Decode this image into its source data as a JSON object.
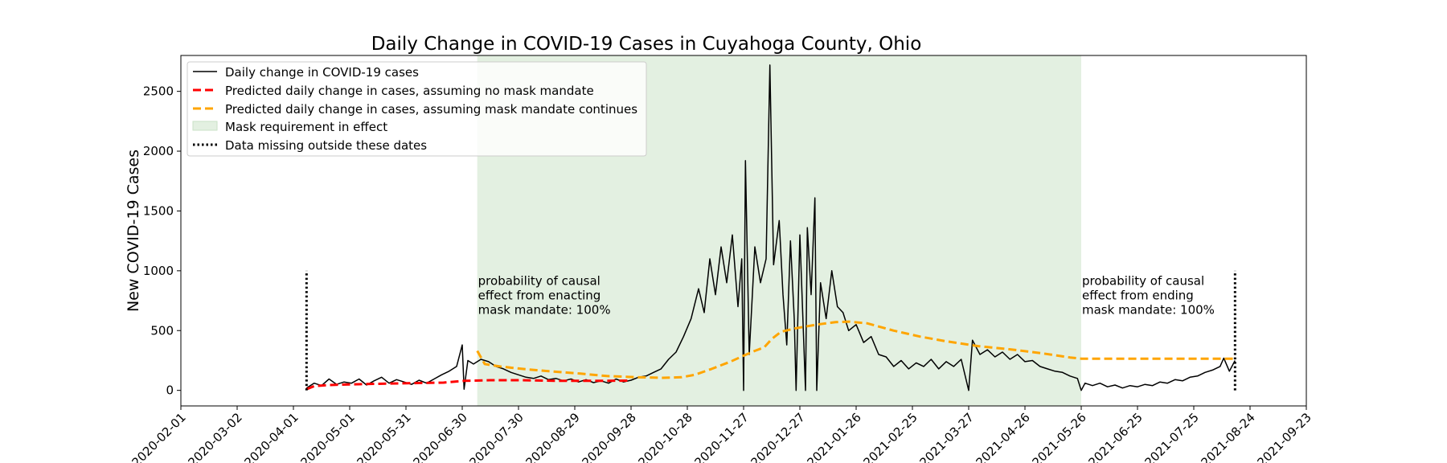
{
  "chart_data": {
    "type": "line",
    "title": "Daily Change in COVID-19 Cases in Cuyahoga County, Ohio",
    "ylabel": "New COVID-19 Cases",
    "xlabel": "",
    "x_range": [
      "2020-02-01",
      "2021-09-23"
    ],
    "ylim": [
      -130,
      2800
    ],
    "y_ticks": [
      0,
      500,
      1000,
      1500,
      2000,
      2500
    ],
    "x_ticks": [
      "2020-02-01",
      "2020-03-02",
      "2020-04-01",
      "2020-05-01",
      "2020-05-31",
      "2020-06-30",
      "2020-07-30",
      "2020-08-29",
      "2020-09-28",
      "2020-10-28",
      "2020-11-27",
      "2020-12-27",
      "2021-01-26",
      "2021-02-25",
      "2021-03-27",
      "2021-04-26",
      "2021-05-26",
      "2021-06-25",
      "2021-07-25",
      "2021-08-24",
      "2021-09-23"
    ],
    "grid": false,
    "legend_position": "top-left",
    "legend": [
      {
        "label": "Daily change in COVID-19 cases",
        "style": "solid",
        "color": "#000000"
      },
      {
        "label": "Predicted daily change in cases, assuming no mask mandate",
        "style": "dashed",
        "color": "#ff0000"
      },
      {
        "label": "Predicted daily change in cases, assuming mask mandate continues",
        "style": "dashed",
        "color": "#ffa500"
      },
      {
        "label": "Mask requirement in effect",
        "style": "patch",
        "color": "#e3f0e1"
      },
      {
        "label": "Data missing outside these dates",
        "style": "dotted",
        "color": "#000000"
      }
    ],
    "mask_period": [
      "2020-07-08",
      "2021-05-26"
    ],
    "data_bounds": {
      "start": "2020-04-08",
      "end": "2021-08-16",
      "height": 1000
    },
    "annotations": [
      {
        "date": "2020-07-08",
        "y": 880,
        "lines": [
          "probability of causal",
          "effect from enacting",
          "mask mandate: 100%"
        ]
      },
      {
        "date": "2021-05-26",
        "y": 880,
        "lines": [
          "probability of causal",
          "effect from ending",
          "mask mandate: 100%"
        ]
      }
    ],
    "series": [
      {
        "name": "Daily change in COVID-19 cases",
        "color": "#000000",
        "points": [
          [
            "2020-04-08",
            20
          ],
          [
            "2020-04-12",
            60
          ],
          [
            "2020-04-16",
            40
          ],
          [
            "2020-04-20",
            95
          ],
          [
            "2020-04-24",
            50
          ],
          [
            "2020-04-28",
            70
          ],
          [
            "2020-05-02",
            60
          ],
          [
            "2020-05-06",
            95
          ],
          [
            "2020-05-10",
            45
          ],
          [
            "2020-05-14",
            80
          ],
          [
            "2020-05-18",
            110
          ],
          [
            "2020-05-22",
            60
          ],
          [
            "2020-05-26",
            90
          ],
          [
            "2020-05-30",
            70
          ],
          [
            "2020-06-03",
            50
          ],
          [
            "2020-06-07",
            85
          ],
          [
            "2020-06-11",
            60
          ],
          [
            "2020-06-15",
            95
          ],
          [
            "2020-06-19",
            130
          ],
          [
            "2020-06-23",
            160
          ],
          [
            "2020-06-27",
            200
          ],
          [
            "2020-06-30",
            380
          ],
          [
            "2020-07-01",
            10
          ],
          [
            "2020-07-03",
            250
          ],
          [
            "2020-07-06",
            220
          ],
          [
            "2020-07-10",
            260
          ],
          [
            "2020-07-14",
            240
          ],
          [
            "2020-07-18",
            200
          ],
          [
            "2020-07-22",
            180
          ],
          [
            "2020-07-26",
            150
          ],
          [
            "2020-07-30",
            130
          ],
          [
            "2020-08-03",
            110
          ],
          [
            "2020-08-07",
            100
          ],
          [
            "2020-08-11",
            120
          ],
          [
            "2020-08-15",
            90
          ],
          [
            "2020-08-19",
            100
          ],
          [
            "2020-08-23",
            80
          ],
          [
            "2020-08-27",
            95
          ],
          [
            "2020-08-31",
            70
          ],
          [
            "2020-09-04",
            90
          ],
          [
            "2020-09-08",
            65
          ],
          [
            "2020-09-12",
            80
          ],
          [
            "2020-09-16",
            60
          ],
          [
            "2020-09-20",
            95
          ],
          [
            "2020-09-24",
            70
          ],
          [
            "2020-09-28",
            85
          ],
          [
            "2020-10-02",
            110
          ],
          [
            "2020-10-06",
            120
          ],
          [
            "2020-10-10",
            150
          ],
          [
            "2020-10-14",
            180
          ],
          [
            "2020-10-18",
            260
          ],
          [
            "2020-10-22",
            320
          ],
          [
            "2020-10-26",
            450
          ],
          [
            "2020-10-30",
            600
          ],
          [
            "2020-11-03",
            850
          ],
          [
            "2020-11-06",
            650
          ],
          [
            "2020-11-09",
            1100
          ],
          [
            "2020-11-12",
            800
          ],
          [
            "2020-11-15",
            1200
          ],
          [
            "2020-11-18",
            900
          ],
          [
            "2020-11-21",
            1300
          ],
          [
            "2020-11-24",
            700
          ],
          [
            "2020-11-26",
            1100
          ],
          [
            "2020-11-27",
            0
          ],
          [
            "2020-11-28",
            1920
          ],
          [
            "2020-11-30",
            300
          ],
          [
            "2020-12-03",
            1200
          ],
          [
            "2020-12-06",
            900
          ],
          [
            "2020-12-09",
            1100
          ],
          [
            "2020-12-11",
            2720
          ],
          [
            "2020-12-13",
            1050
          ],
          [
            "2020-12-16",
            1420
          ],
          [
            "2020-12-18",
            800
          ],
          [
            "2020-12-20",
            380
          ],
          [
            "2020-12-22",
            1250
          ],
          [
            "2020-12-24",
            600
          ],
          [
            "2020-12-25",
            0
          ],
          [
            "2020-12-27",
            1300
          ],
          [
            "2020-12-30",
            0
          ],
          [
            "2020-12-31",
            1360
          ],
          [
            "2021-01-02",
            800
          ],
          [
            "2021-01-04",
            1610
          ],
          [
            "2021-01-05",
            0
          ],
          [
            "2021-01-07",
            900
          ],
          [
            "2021-01-10",
            600
          ],
          [
            "2021-01-13",
            1000
          ],
          [
            "2021-01-16",
            700
          ],
          [
            "2021-01-19",
            650
          ],
          [
            "2021-01-22",
            500
          ],
          [
            "2021-01-26",
            550
          ],
          [
            "2021-01-30",
            400
          ],
          [
            "2021-02-03",
            450
          ],
          [
            "2021-02-07",
            300
          ],
          [
            "2021-02-11",
            280
          ],
          [
            "2021-02-15",
            200
          ],
          [
            "2021-02-19",
            250
          ],
          [
            "2021-02-23",
            180
          ],
          [
            "2021-02-27",
            230
          ],
          [
            "2021-03-03",
            200
          ],
          [
            "2021-03-07",
            260
          ],
          [
            "2021-03-11",
            180
          ],
          [
            "2021-03-15",
            240
          ],
          [
            "2021-03-19",
            200
          ],
          [
            "2021-03-23",
            260
          ],
          [
            "2021-03-27",
            0
          ],
          [
            "2021-03-29",
            420
          ],
          [
            "2021-04-02",
            300
          ],
          [
            "2021-04-06",
            340
          ],
          [
            "2021-04-10",
            280
          ],
          [
            "2021-04-14",
            320
          ],
          [
            "2021-04-18",
            260
          ],
          [
            "2021-04-22",
            300
          ],
          [
            "2021-04-26",
            240
          ],
          [
            "2021-04-30",
            250
          ],
          [
            "2021-05-04",
            200
          ],
          [
            "2021-05-08",
            180
          ],
          [
            "2021-05-12",
            160
          ],
          [
            "2021-05-16",
            150
          ],
          [
            "2021-05-20",
            120
          ],
          [
            "2021-05-24",
            100
          ],
          [
            "2021-05-26",
            0
          ],
          [
            "2021-05-28",
            60
          ],
          [
            "2021-06-01",
            40
          ],
          [
            "2021-06-05",
            60
          ],
          [
            "2021-06-09",
            30
          ],
          [
            "2021-06-13",
            45
          ],
          [
            "2021-06-17",
            20
          ],
          [
            "2021-06-21",
            40
          ],
          [
            "2021-06-25",
            30
          ],
          [
            "2021-06-29",
            50
          ],
          [
            "2021-07-03",
            40
          ],
          [
            "2021-07-07",
            70
          ],
          [
            "2021-07-11",
            60
          ],
          [
            "2021-07-15",
            90
          ],
          [
            "2021-07-19",
            80
          ],
          [
            "2021-07-23",
            110
          ],
          [
            "2021-07-27",
            120
          ],
          [
            "2021-07-31",
            150
          ],
          [
            "2021-08-04",
            170
          ],
          [
            "2021-08-08",
            200
          ],
          [
            "2021-08-10",
            270
          ],
          [
            "2021-08-13",
            160
          ],
          [
            "2021-08-16",
            250
          ]
        ]
      },
      {
        "name": "Predicted daily change in cases, assuming no mask mandate",
        "color": "#ff0000",
        "points": [
          [
            "2020-04-08",
            10
          ],
          [
            "2020-04-12",
            35
          ],
          [
            "2020-04-20",
            45
          ],
          [
            "2020-05-01",
            50
          ],
          [
            "2020-05-15",
            55
          ],
          [
            "2020-06-01",
            60
          ],
          [
            "2020-06-20",
            65
          ],
          [
            "2020-07-01",
            80
          ],
          [
            "2020-07-15",
            85
          ],
          [
            "2020-08-01",
            85
          ],
          [
            "2020-08-20",
            80
          ],
          [
            "2020-09-10",
            80
          ],
          [
            "2020-09-28",
            82
          ]
        ]
      },
      {
        "name": "Predicted daily change in cases, assuming mask mandate continues",
        "color": "#ffa500",
        "points": [
          [
            "2020-07-08",
            330
          ],
          [
            "2020-07-12",
            220
          ],
          [
            "2020-07-20",
            200
          ],
          [
            "2020-08-01",
            180
          ],
          [
            "2020-08-15",
            160
          ],
          [
            "2020-09-01",
            140
          ],
          [
            "2020-09-15",
            120
          ],
          [
            "2020-10-01",
            110
          ],
          [
            "2020-10-15",
            105
          ],
          [
            "2020-10-25",
            110
          ],
          [
            "2020-11-01",
            130
          ],
          [
            "2020-11-10",
            180
          ],
          [
            "2020-11-20",
            240
          ],
          [
            "2020-11-27",
            290
          ],
          [
            "2020-12-03",
            330
          ],
          [
            "2020-12-08",
            360
          ],
          [
            "2020-12-12",
            430
          ],
          [
            "2020-12-17",
            490
          ],
          [
            "2020-12-25",
            520
          ],
          [
            "2021-01-05",
            550
          ],
          [
            "2021-01-15",
            570
          ],
          [
            "2021-01-22",
            575
          ],
          [
            "2021-02-01",
            560
          ],
          [
            "2021-02-15",
            500
          ],
          [
            "2021-03-01",
            450
          ],
          [
            "2021-03-15",
            410
          ],
          [
            "2021-04-01",
            370
          ],
          [
            "2021-04-20",
            340
          ],
          [
            "2021-05-05",
            310
          ],
          [
            "2021-05-20",
            275
          ],
          [
            "2021-05-26",
            265
          ],
          [
            "2021-06-10",
            265
          ],
          [
            "2021-07-01",
            265
          ],
          [
            "2021-08-16",
            265
          ]
        ]
      }
    ]
  }
}
